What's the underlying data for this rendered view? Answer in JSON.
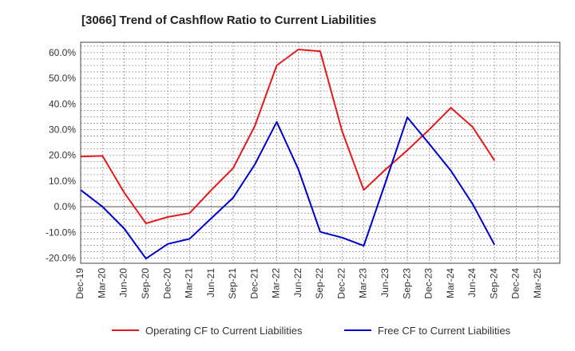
{
  "chart_data": {
    "type": "line",
    "title": "[3066]  Trend of Cashflow Ratio to Current Liabilities",
    "xlabel": "",
    "ylabel": "",
    "ylim": [
      -22,
      64
    ],
    "y_ticks": [
      "-20.0%",
      "-10.0%",
      "0.0%",
      "10.0%",
      "20.0%",
      "30.0%",
      "40.0%",
      "50.0%",
      "60.0%"
    ],
    "y_tick_values": [
      -20,
      -10,
      0,
      10,
      20,
      30,
      40,
      50,
      60
    ],
    "categories": [
      "Dec-19",
      "Mar-20",
      "Jun-20",
      "Sep-20",
      "Dec-20",
      "Mar-21",
      "Jun-21",
      "Sep-21",
      "Dec-21",
      "Mar-22",
      "Jun-22",
      "Sep-22",
      "Dec-22",
      "Mar-23",
      "Jun-23",
      "Sep-23",
      "Dec-23",
      "Mar-24",
      "Jun-24",
      "Sep-24",
      "Dec-24",
      "Mar-25"
    ],
    "grid": true,
    "legend_position": "bottom",
    "series": [
      {
        "name": "Operating CF to Current Liabilities",
        "color": "#e31a1c",
        "values": [
          19.5,
          19.8,
          5.5,
          -6.5,
          -4.0,
          -2.5,
          6.5,
          15.0,
          31.5,
          55.0,
          61.2,
          60.5,
          29.5,
          6.5,
          14.5,
          22.0,
          30.0,
          38.5,
          31.0,
          18.0,
          null,
          null
        ]
      },
      {
        "name": "Free CF to Current Liabilities",
        "color": "#0000cc",
        "values": [
          6.5,
          0.0,
          -8.5,
          -20.2,
          -14.5,
          -12.5,
          -4.5,
          3.5,
          16.5,
          33.0,
          14.5,
          -9.8,
          -12.0,
          -15.2,
          9.5,
          34.8,
          24.5,
          14.0,
          1.0,
          -14.8,
          null,
          null
        ]
      }
    ]
  }
}
